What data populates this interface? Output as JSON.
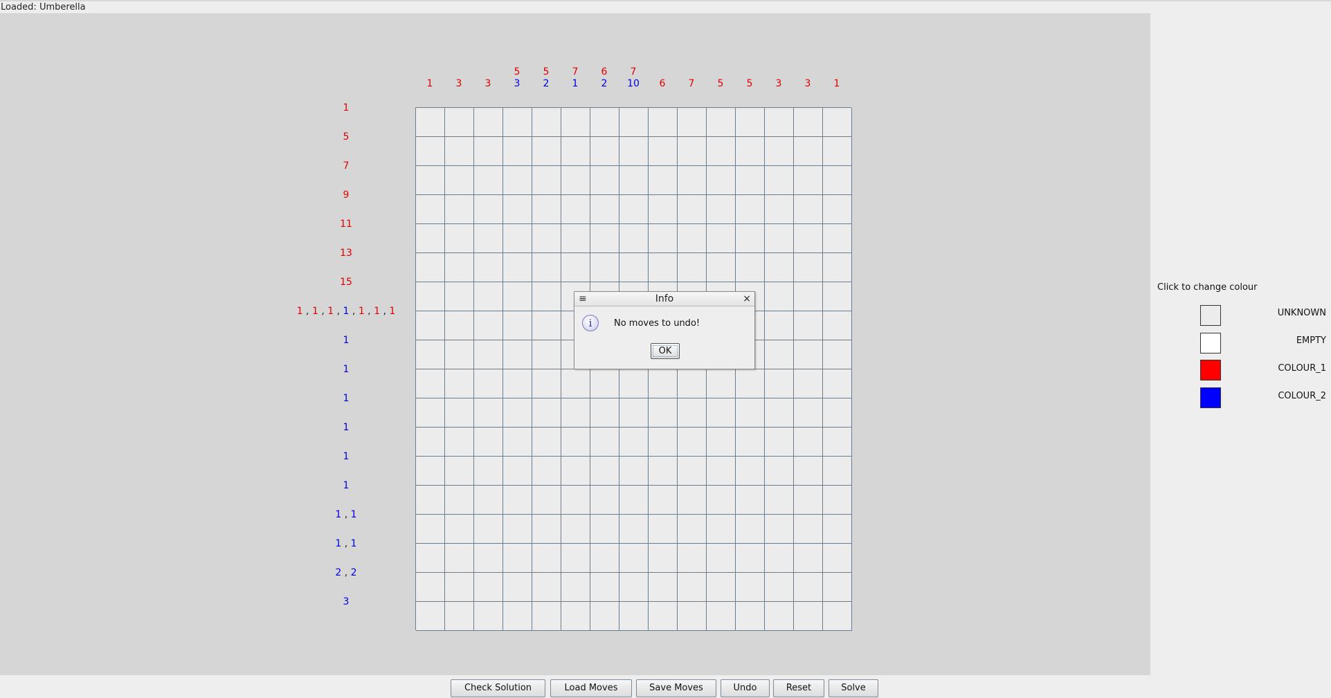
{
  "status": {
    "text": "Loaded: Umberella"
  },
  "puzzle": {
    "colors": {
      "colour_1": "#e00000",
      "colour_2": "#0000e0",
      "unknown": "#ececec",
      "empty": "#ffffff"
    },
    "col_clues": [
      [
        {
          "v": "1",
          "c": 1
        }
      ],
      [
        {
          "v": "3",
          "c": 1
        }
      ],
      [
        {
          "v": "3",
          "c": 1
        }
      ],
      [
        {
          "v": "5",
          "c": 1
        },
        {
          "v": "3",
          "c": 2
        }
      ],
      [
        {
          "v": "5",
          "c": 1
        },
        {
          "v": "2",
          "c": 2
        }
      ],
      [
        {
          "v": "7",
          "c": 1
        },
        {
          "v": "1",
          "c": 2
        }
      ],
      [
        {
          "v": "6",
          "c": 1
        },
        {
          "v": "2",
          "c": 2
        }
      ],
      [
        {
          "v": "7",
          "c": 1
        },
        {
          "v": "10",
          "c": 2
        }
      ],
      [
        {
          "v": "6",
          "c": 1
        }
      ],
      [
        {
          "v": "7",
          "c": 1
        }
      ],
      [
        {
          "v": "5",
          "c": 1
        }
      ],
      [
        {
          "v": "5",
          "c": 1
        }
      ],
      [
        {
          "v": "3",
          "c": 1
        }
      ],
      [
        {
          "v": "3",
          "c": 1
        }
      ],
      [
        {
          "v": "1",
          "c": 1
        }
      ]
    ],
    "row_clues": [
      [
        {
          "v": "1",
          "c": 1
        }
      ],
      [
        {
          "v": "5",
          "c": 1
        }
      ],
      [
        {
          "v": "7",
          "c": 1
        }
      ],
      [
        {
          "v": "9",
          "c": 1
        }
      ],
      [
        {
          "v": "11",
          "c": 1
        }
      ],
      [
        {
          "v": "13",
          "c": 1
        }
      ],
      [
        {
          "v": "15",
          "c": 1
        }
      ],
      [
        {
          "v": "1",
          "c": 1
        },
        {
          "v": "1",
          "c": 1
        },
        {
          "v": "1",
          "c": 1
        },
        {
          "v": "1",
          "c": 2
        },
        {
          "v": "1",
          "c": 1
        },
        {
          "v": "1",
          "c": 1
        },
        {
          "v": "1",
          "c": 1
        }
      ],
      [
        {
          "v": "1",
          "c": 2
        }
      ],
      [
        {
          "v": "1",
          "c": 2
        }
      ],
      [
        {
          "v": "1",
          "c": 2
        }
      ],
      [
        {
          "v": "1",
          "c": 2
        }
      ],
      [
        {
          "v": "1",
          "c": 2
        }
      ],
      [
        {
          "v": "1",
          "c": 2
        }
      ],
      [
        {
          "v": "1",
          "c": 2
        },
        {
          "v": "1",
          "c": 2
        }
      ],
      [
        {
          "v": "1",
          "c": 2
        },
        {
          "v": "1",
          "c": 2
        }
      ],
      [
        {
          "v": "2",
          "c": 2
        },
        {
          "v": "2",
          "c": 2
        }
      ],
      [
        {
          "v": "3",
          "c": 2
        }
      ]
    ],
    "separator": ","
  },
  "dialog": {
    "title": "Info",
    "message": "No moves to undo!",
    "ok_label": "OK",
    "menu_icon": "≡",
    "close_icon": "×",
    "info_glyph": "i"
  },
  "legend": {
    "title": "Click to change colour",
    "items": [
      {
        "label": "UNKNOWN",
        "color": "#ececec"
      },
      {
        "label": "EMPTY",
        "color": "#ffffff"
      },
      {
        "label": "COLOUR_1",
        "color": "#ff0000"
      },
      {
        "label": "COLOUR_2",
        "color": "#0000ff"
      }
    ]
  },
  "buttons": {
    "check_solution": "Check Solution",
    "load_moves": "Load Moves",
    "save_moves": "Save Moves",
    "undo": "Undo",
    "reset": "Reset",
    "solve": "Solve"
  }
}
